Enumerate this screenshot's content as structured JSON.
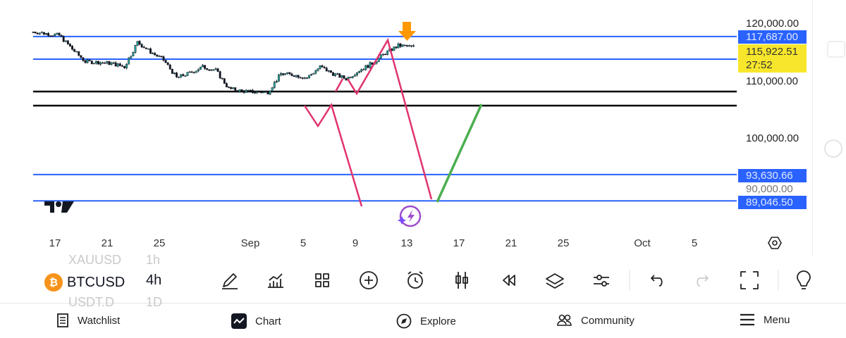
{
  "chart": {
    "symbol": "BTCUSD",
    "interval": "4h",
    "price_axis": [
      "120,000.00",
      "110,000.00",
      "100,000.00",
      "90,000.00"
    ],
    "levels": [
      {
        "price": 117687.0,
        "label": "117,687.00",
        "color": "#2962ff"
      },
      {
        "price": 113750,
        "color": "#2962ff"
      },
      {
        "price": 108100,
        "color": "#000000"
      },
      {
        "price": 105650,
        "color": "#000000"
      },
      {
        "price": 93630.66,
        "label": "93,630.66",
        "color": "#2962ff"
      },
      {
        "price": 89046.5,
        "label": "89,046.50",
        "color": "#2962ff"
      }
    ],
    "current_price": "115,922.51",
    "countdown": "27:52",
    "current_color": "#f7e62b",
    "date_axis": [
      "17",
      "21",
      "25",
      "Sep",
      "5",
      "9",
      "13",
      "17",
      "21",
      "25",
      "Oct",
      "5"
    ],
    "price_path_dates": [
      "Aug 15",
      "Aug 16",
      "Aug 17",
      "Aug 18",
      "Aug 19",
      "Aug 20",
      "Aug 21",
      "Aug 22",
      "Aug 23",
      "Aug 24",
      "Aug 25",
      "Aug 26",
      "Aug 27",
      "Aug 28",
      "Aug 29",
      "Aug 30",
      "Aug 31",
      "Sep 1",
      "Sep 2",
      "Sep 3",
      "Sep 4",
      "Sep 5",
      "Sep 6",
      "Sep 7",
      "Sep 8",
      "Sep 9",
      "Sep 10",
      "Sep 11",
      "Sep 12",
      "Sep 13"
    ],
    "price_path_closes": [
      118500,
      118200,
      117900,
      115500,
      113300,
      113200,
      113000,
      112400,
      116700,
      115000,
      113600,
      110500,
      111300,
      112400,
      111800,
      108600,
      108200,
      108000,
      108000,
      111200,
      111000,
      110500,
      112400,
      111200,
      110300,
      111800,
      113000,
      114800,
      116100,
      115900
    ],
    "drawing_colors": {
      "pink": "#e0336f",
      "green": "#4caf50",
      "arrow": "#ff9800"
    }
  },
  "toolbar": {
    "ghost_above": {
      "symbol": "XAUUSD",
      "interval": "1h"
    },
    "ghost_below": {
      "symbol": "USDT.D",
      "interval": "1D"
    },
    "icons": [
      "pencil-icon",
      "indicators-icon",
      "grid-icon",
      "plus-circle-icon",
      "alarm-icon",
      "candles-icon",
      "replay-icon",
      "layers-icon",
      "settings-sliders-icon",
      "undo-icon",
      "redo-icon",
      "fullscreen-icon",
      "lightbulb-icon"
    ]
  },
  "nav": {
    "items": [
      {
        "label": "Watchlist",
        "icon": "watchlist-icon"
      },
      {
        "label": "Chart",
        "icon": "chart-icon"
      },
      {
        "label": "Explore",
        "icon": "compass-icon"
      },
      {
        "label": "Community",
        "icon": "community-icon"
      },
      {
        "label": "Menu",
        "icon": "menu-icon"
      }
    ]
  }
}
